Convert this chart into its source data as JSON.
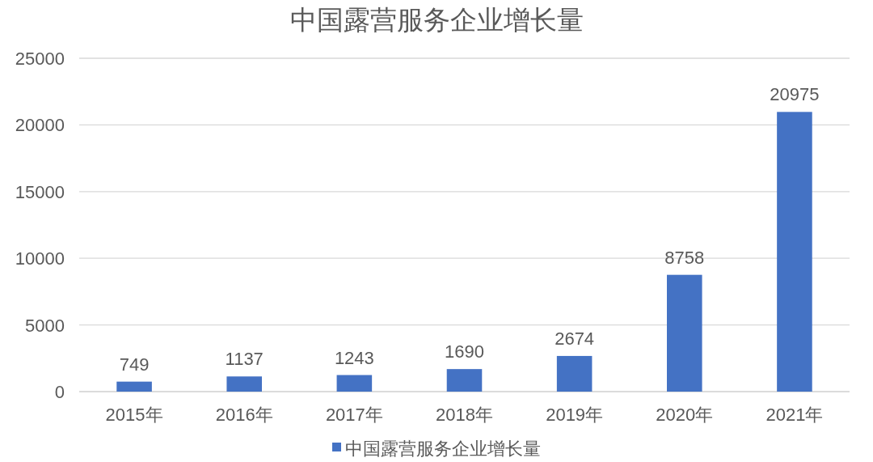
{
  "chart_data": {
    "type": "bar",
    "title": "中国露营服务企业增长量",
    "categories": [
      "2015年",
      "2016年",
      "2017年",
      "2018年",
      "2019年",
      "2020年",
      "2021年"
    ],
    "series": [
      {
        "name": "中国露营服务企业增长量",
        "color": "#4472c4",
        "values": [
          749,
          1137,
          1243,
          1690,
          2674,
          8758,
          20975
        ]
      }
    ],
    "ylim": [
      0,
      25000
    ],
    "yticks": [
      0,
      5000,
      10000,
      15000,
      20000,
      25000
    ],
    "grid": "y",
    "legend": "bottom",
    "data_labels": true
  }
}
